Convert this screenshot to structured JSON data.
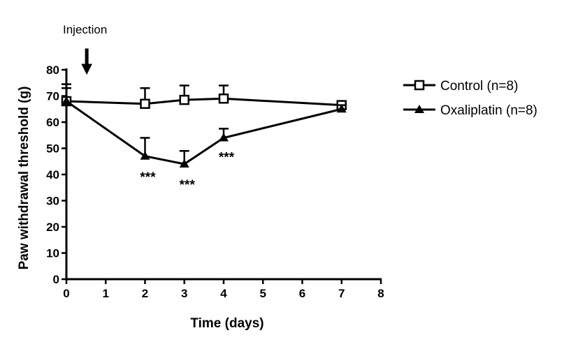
{
  "chart_data": {
    "type": "line",
    "xlabel": "Time (days)",
    "ylabel": "Paw withdrawal threshold (g)",
    "xlim": [
      0,
      8
    ],
    "ylim": [
      0,
      80
    ],
    "xticks": [
      0,
      1,
      2,
      3,
      4,
      5,
      6,
      7,
      8
    ],
    "yticks": [
      0,
      10,
      20,
      30,
      40,
      50,
      60,
      70,
      80
    ],
    "grid": false,
    "legend_position": "top-right",
    "annotation": {
      "text": "Injection",
      "x": 0.5
    },
    "series": [
      {
        "name": "Control (n=8)",
        "marker": "open-square",
        "x": [
          0,
          2,
          3,
          4,
          7
        ],
        "y": [
          68,
          67,
          68.5,
          69,
          66.5
        ],
        "error": [
          6.5,
          6,
          5.5,
          5,
          1.5
        ]
      },
      {
        "name": "Oxaliplatin (n=8)",
        "marker": "filled-triangle",
        "x": [
          0,
          2,
          3,
          4,
          7
        ],
        "y": [
          68,
          47,
          44,
          54,
          65
        ],
        "error": [
          5,
          7,
          5,
          3.5,
          1.5
        ]
      }
    ],
    "significance": [
      {
        "x": 2,
        "label": "***"
      },
      {
        "x": 3,
        "label": "***"
      },
      {
        "x": 4,
        "label": "***"
      }
    ]
  }
}
